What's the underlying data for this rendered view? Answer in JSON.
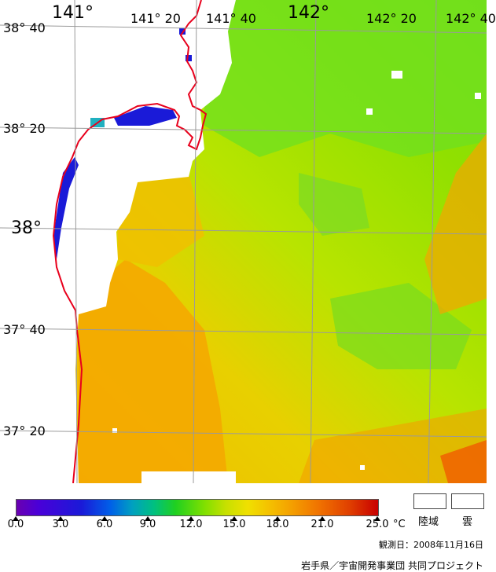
{
  "map": {
    "lon_labels": [
      "141°",
      "141° 20",
      "141° 40",
      "142°",
      "142° 20",
      "142° 40"
    ],
    "lat_labels": [
      "38° 40",
      "38° 20",
      "38°",
      "37° 40",
      "37° 20"
    ],
    "colors": {
      "land": "#ffffff",
      "coastline": "#e8001c",
      "grid": "#9a9a9a"
    }
  },
  "legend": {
    "ticks": [
      "0.0",
      "3.0",
      "6.0",
      "9.0",
      "12.0",
      "15.0",
      "18.0",
      "21.0",
      "25.0"
    ],
    "unit": "°C",
    "land_label": "陸域",
    "cloud_label": "雲",
    "observation_date": "観測日：2008年11月16日",
    "credit": "岩手県／宇宙開発事業団 共同プロジェクト"
  }
}
